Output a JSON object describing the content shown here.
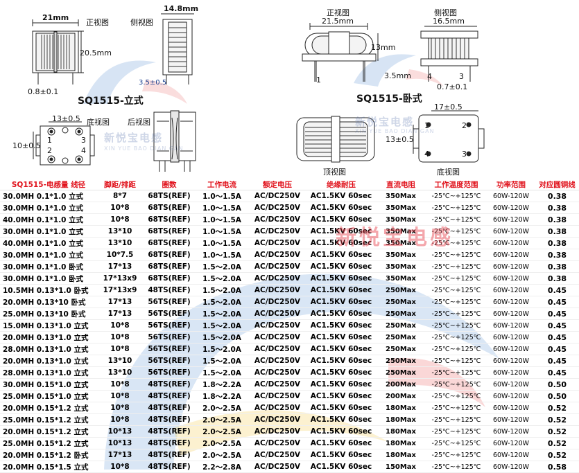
{
  "drawings": {
    "left": {
      "dim_width": "21mm",
      "dim_height": "20.5mm",
      "dim_side_width": "14.8mm",
      "dim_pin": "0.8±0.1",
      "dim_pin_pitch": "3.5±0.5",
      "front_view": "正视图",
      "side_view": "侧视图",
      "model": "SQ1515-立式",
      "bottom_view": "底视图",
      "rear_view": "后视图",
      "dim_bottom_h": "13±0.5",
      "dim_bottom_v": "10±0.5",
      "pins": [
        "1",
        "2",
        "3",
        "4"
      ]
    },
    "right": {
      "front_view": "正视图",
      "side_view": "侧视图",
      "dim_width": "21.5mm",
      "dim_height": "13mm",
      "dim_side_width": "16.5mm",
      "dim_pin_pitch": "3.5mm",
      "dim_pin": "0.7±0.1",
      "model": "SQ1515-卧式",
      "top_view": "顶视图",
      "bottom_view": "底视图",
      "dim_bottom_h": "17±0.5",
      "dim_bottom_v": "13±0.5",
      "pins": [
        "1",
        "2",
        "3",
        "4"
      ]
    },
    "watermark": {
      "text": "新悦宝电感",
      "sub": "XIN YUE BAO DIAN GAN"
    }
  },
  "table": {
    "headers": [
      "SQ1515-电感量 线径",
      "脚距/排距",
      "圈数",
      "工作电流",
      "额定电压",
      "绝缘耐压",
      "直流电阻",
      "工作温度范围",
      "功率范围",
      "对应圆铜线"
    ],
    "rows": [
      [
        "30.0MH 0.1*1.0 立式",
        "8*7",
        "68TS(REF)",
        "1.0～1.5A",
        "AC/DC250V",
        "AC1.5KV 60sec",
        "350Max",
        "-25℃~+125℃",
        "60W-120W",
        "0.38"
      ],
      [
        "30.0MH 0.1*1.0 立式",
        "10*8",
        "68TS(REF)",
        "1.0～1.5A",
        "AC/DC250V",
        "AC1.5KV 60sec",
        "350Max",
        "-25℃~+125℃",
        "60W-120W",
        "0.38"
      ],
      [
        "40.0MH 0.1*1.0 立式",
        "10*8",
        "68TS(REF)",
        "1.0～1.5A",
        "AC/DC250V",
        "AC1.5KV 60sec",
        "350Max",
        "-25℃~+125℃",
        "60W-120W",
        "0.38"
      ],
      [
        "30.0MH 0.1*1.0 立式",
        "13*10",
        "68TS(REF)",
        "1.0～1.5A",
        "AC/DC250V",
        "AC1.5KV 60sec",
        "350Max",
        "-25℃~+125℃",
        "60W-120W",
        "0.38"
      ],
      [
        "40.0MH 0.1*1.0 立式",
        "13*10",
        "68TS(REF)",
        "1.0～1.5A",
        "AC/DC250V",
        "AC1.5KV 60sec",
        "350Max",
        "-25℃~+125℃",
        "60W-120W",
        "0.38"
      ],
      [
        "30.0MH 0.1*1.0 立式",
        "10*7.5",
        "68TS(REF)",
        "1.0～1.5A",
        "AC/DC250V",
        "AC1.5KV 60sec",
        "350Max",
        "-25℃~+125℃",
        "60W-120W",
        "0.38"
      ],
      [
        "30.0MH 0.1*1.0 卧式",
        "17*13",
        "68TS(REF)",
        "1.5～2.0A",
        "AC/DC250V",
        "AC1.5KV 60sec",
        "350Max",
        "-25℃~+125℃",
        "60W-120W",
        "0.38"
      ],
      [
        "30.0MH 0.1*1.0 卧式",
        "17*13x9",
        "68TS(REF)",
        "1.5～2.0A",
        "AC/DC250V",
        "AC1.5KV 60sec",
        "350Max",
        "-25℃~+125℃",
        "60W-120W",
        "0.38"
      ],
      [
        "10.5MH 0.13*1.0 卧式",
        "17*13x9",
        "48TS(REF)",
        "1.5～2.0A",
        "AC/DC250V",
        "AC1.5KV 60sec",
        "250Max",
        "-25℃~+125℃",
        "60W-120W",
        "0.45"
      ],
      [
        "20.0MH 0.13*10 卧式",
        "17*13",
        "56TS(REF)",
        "1.5～2.0A",
        "AC/DC250V",
        "AC1.5KV 60sec",
        "250Max",
        "-25℃~+125℃",
        "60W-120W",
        "0.45"
      ],
      [
        "25.0MH 0.13*10 卧式",
        "17*13",
        "56TS(REF)",
        "1.5～2.0A",
        "AC/DC250V",
        "AC1.5KV 60sec",
        "250Max",
        "-25℃~+125℃",
        "60W-120W",
        "0.45"
      ],
      [
        "15.0MH 0.13*1.0 立式",
        "10*8",
        "56TS(REF)",
        "1.5～2.0A",
        "AC/DC250V",
        "AC1.5KV 60sec",
        "250Max",
        "-25℃~+125℃",
        "60W-120W",
        "0.45"
      ],
      [
        "20.0MH 0.13*1.0 立式",
        "10*8",
        "56TS(REF)",
        "1.5～2.0A",
        "AC/DC250V",
        "AC1.5KV 60sec",
        "250Max",
        "-25℃~+125℃",
        "60W-120W",
        "0.45"
      ],
      [
        "28.0MH 0.13*1.0 立式",
        "10*8",
        "56TS(REF)",
        "1.5～2.0A",
        "AC/DC250V",
        "AC1.5KV 60sec",
        "250Max",
        "-25℃~+125℃",
        "60W-120W",
        "0.45"
      ],
      [
        "20.0MH 0.13*1.0 立式",
        "13*10",
        "56TS(REF)",
        "1.5～2.0A",
        "AC/DC250V",
        "AC1.5KV 60sec",
        "250Max",
        "-25℃~+125℃",
        "60W-120W",
        "0.45"
      ],
      [
        "28.0MH 0.13*1.0 立式",
        "13*10",
        "56TS(REF)",
        "1.5～2.0A",
        "AC/DC250V",
        "AC1.5KV 60sec",
        "250Max",
        "-25℃~+125℃",
        "60W-120W",
        "0.45"
      ],
      [
        "30.0MH 0.15*1.0 立式",
        "10*8",
        "48TS(REF)",
        "1.8～2.2A",
        "AC/DC250V",
        "AC1.5KV 60sec",
        "200Max",
        "-25℃~+125℃",
        "60W-120W",
        "0.50"
      ],
      [
        "25.0MH 0.15*1.0 立式",
        "10*8",
        "48TS(REF)",
        "1.8～2.2A",
        "AC/DC250V",
        "AC1.5KV 60sec",
        "200Max",
        "-25℃~+125℃",
        "60W-120W",
        "0.50"
      ],
      [
        "20.0MH 0.15*1.2 立式",
        "10*8",
        "48TS(REF)",
        "2.0～2.5A",
        "AC/DC250V",
        "AC1.5KV 60sec",
        "180Max",
        "-25℃~+125℃",
        "60W-120W",
        "0.52"
      ],
      [
        "25.0MH 0.15*1.2 立式",
        "10*8",
        "48TS(REF)",
        "2.0～2.5A",
        "AC/DC250V",
        "AC1.5KV 60sec",
        "180Max",
        "-25℃~+125℃",
        "60W-120W",
        "0.52"
      ],
      [
        "20.0MH 0.15*1.2 立式",
        "10*13",
        "48TS(REF)",
        "2.0～2.5A",
        "AC/DC250V",
        "AC1.5KV 60sec",
        "180Max",
        "-25℃~+125℃",
        "60W-120W",
        "0.52"
      ],
      [
        "25.0MH 0.15*1.2 立式",
        "10*13",
        "48TS(REF)",
        "2.0～2.5A",
        "AC/DC250V",
        "AC1.5KV 60sec",
        "180Max",
        "-25℃~+125℃",
        "60W-120W",
        "0.52"
      ],
      [
        "20.0MH 0.15*1.2 卧式",
        "17*13",
        "48TS(REF)",
        "2.0～2.5A",
        "AC/DC250V",
        "AC1.5KV 60sec",
        "180Max",
        "-25℃~+125℃",
        "60W-120W",
        "0.52"
      ],
      [
        "20.0MH 0.15*1.5 立式",
        "10*8",
        "48TS(REF)",
        "2.2～2.8A",
        "AC/DC250V",
        "AC1.5KV 60sec",
        "150Max",
        "-25℃~+125℃",
        "60W-120W",
        "0.58"
      ]
    ],
    "watermark_text": "新悦宝电感"
  },
  "colors": {
    "header_text": "#e0101a",
    "watermark_blue": "#3c5aa0",
    "watermark_red": "#e63c46"
  }
}
